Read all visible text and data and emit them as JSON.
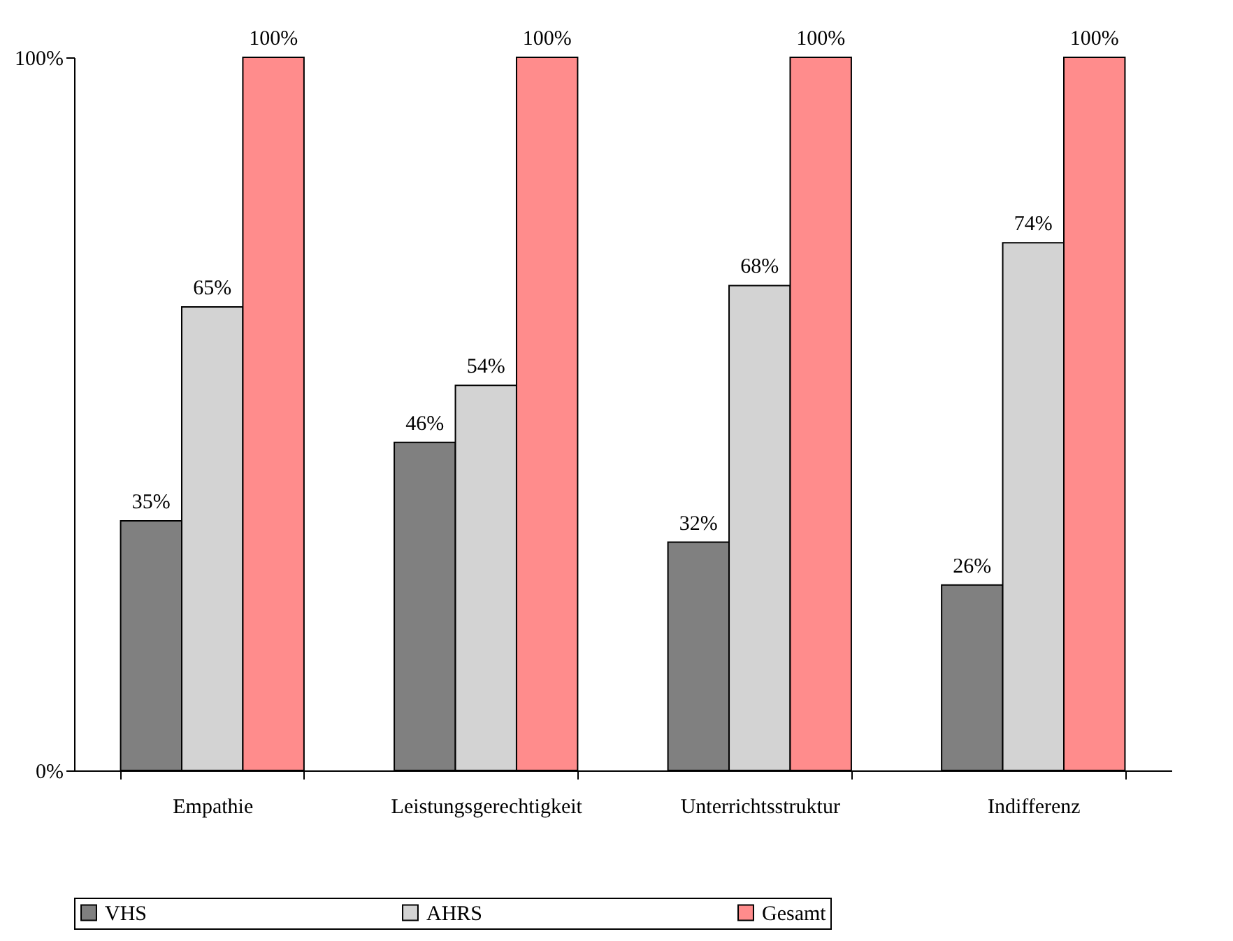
{
  "chart_data": {
    "type": "bar",
    "categories": [
      "Empathie",
      "Leistungsgerechtigkeit",
      "Unterrichtsstruktur",
      "Indifferenz"
    ],
    "series": [
      {
        "name": "VHS",
        "color": "#808080",
        "values": [
          35,
          46,
          32,
          26
        ],
        "value_labels": [
          "35%",
          "46%",
          "32%",
          "26%"
        ]
      },
      {
        "name": "AHRS",
        "color": "#d3d3d3",
        "values": [
          65,
          54,
          68,
          74
        ],
        "value_labels": [
          "65%",
          "54%",
          "68%",
          "74%"
        ]
      },
      {
        "name": "Gesamt",
        "color": "#ff8c8c",
        "values": [
          100,
          100,
          100,
          100
        ],
        "value_labels": [
          "100%",
          "100%",
          "100%",
          "100%"
        ]
      }
    ],
    "ylim": [
      0,
      100
    ],
    "yticks": [
      {
        "value": 0,
        "label": "0%"
      },
      {
        "value": 100,
        "label": "100%"
      }
    ],
    "grid": false,
    "legend": "bottom"
  }
}
